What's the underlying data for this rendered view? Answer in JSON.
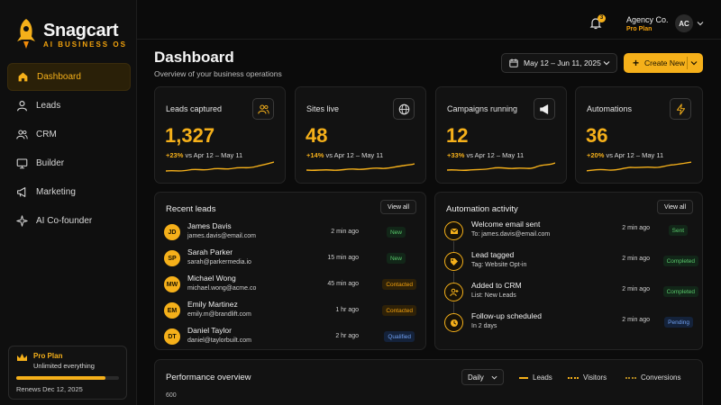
{
  "brand": {
    "name": "Snagcart",
    "tagline": "AI BUSINESS OS"
  },
  "sidebar": {
    "items": [
      {
        "label": "Dashboard",
        "icon": "home-icon",
        "active": true
      },
      {
        "label": "Leads",
        "icon": "user-icon"
      },
      {
        "label": "CRM",
        "icon": "users-icon"
      },
      {
        "label": "Builder",
        "icon": "monitor-icon"
      },
      {
        "label": "Marketing",
        "icon": "megaphone-icon"
      },
      {
        "label": "AI Co-founder",
        "icon": "sparkle-icon"
      }
    ],
    "plan": {
      "title": "Pro Plan",
      "subtitle": "Unlimited everything",
      "renews": "Renews Dec 12, 2025",
      "usage_fraction": 0.87
    }
  },
  "topbar": {
    "notifications": "3",
    "account_name": "Agency Co.",
    "account_plan": "Pro Plan",
    "avatar": "AC"
  },
  "header": {
    "title": "Dashboard",
    "subtitle": "Overview of your business operations",
    "date_range": "May 12 – Jun 11, 2025",
    "create_label": "Create New"
  },
  "stats": [
    {
      "label": "Leads captured",
      "value": "1,327",
      "delta": "+23%",
      "compare": "vs Apr 12 – May 11",
      "icon": "users-icon"
    },
    {
      "label": "Sites live",
      "value": "48",
      "delta": "+14%",
      "compare": "vs Apr 12 – May 11",
      "icon": "globe-icon"
    },
    {
      "label": "Campaigns running",
      "value": "12",
      "delta": "+33%",
      "compare": "vs Apr 12 – May 11",
      "icon": "megaphone-icon"
    },
    {
      "label": "Automations",
      "value": "36",
      "delta": "+20%",
      "compare": "vs Apr 12 – May 11",
      "icon": "bolt-icon"
    }
  ],
  "recent_leads": {
    "title": "Recent leads",
    "view_all": "View all",
    "rows": [
      {
        "initials": "JD",
        "name": "James Davis",
        "email": "james.davis@email.com",
        "time": "2 min ago",
        "status": "New",
        "kind": "new"
      },
      {
        "initials": "SP",
        "name": "Sarah Parker",
        "email": "sarah@parkermedia.io",
        "time": "15 min ago",
        "status": "New",
        "kind": "new"
      },
      {
        "initials": "MW",
        "name": "Michael Wong",
        "email": "michael.wong@acme.co",
        "time": "45 min ago",
        "status": "Contacted",
        "kind": "contacted"
      },
      {
        "initials": "EM",
        "name": "Emily Martinez",
        "email": "emily.m@brandlift.com",
        "time": "1 hr ago",
        "status": "Contacted",
        "kind": "contacted"
      },
      {
        "initials": "DT",
        "name": "Daniel Taylor",
        "email": "daniel@taylorbuilt.com",
        "time": "2 hr ago",
        "status": "Qualified",
        "kind": "qualified"
      }
    ]
  },
  "automation": {
    "title": "Automation activity",
    "view_all": "View all",
    "rows": [
      {
        "title": "Welcome email sent",
        "sub": "To: james.davis@email.com",
        "time": "2 min ago",
        "status": "Sent",
        "kind": "sent",
        "icon": "mail-icon"
      },
      {
        "title": "Lead tagged",
        "sub": "Tag: Website Opt-in",
        "time": "2 min ago",
        "status": "Completed",
        "kind": "completed",
        "icon": "tag-icon"
      },
      {
        "title": "Added to CRM",
        "sub": "List: New Leads",
        "time": "2 min ago",
        "status": "Completed",
        "kind": "completed",
        "icon": "user-plus-icon"
      },
      {
        "title": "Follow-up scheduled",
        "sub": "In 2 days",
        "time": "2 min ago",
        "status": "Pending",
        "kind": "pending",
        "icon": "clock-icon"
      }
    ]
  },
  "performance": {
    "title": "Performance overview",
    "period": "Daily",
    "legend": [
      "Leads",
      "Visitors",
      "Conversions"
    ],
    "y_top": "600"
  },
  "colors": {
    "accent": "#f5b01a",
    "bg": "#0b0b0b",
    "card": "#121212"
  }
}
